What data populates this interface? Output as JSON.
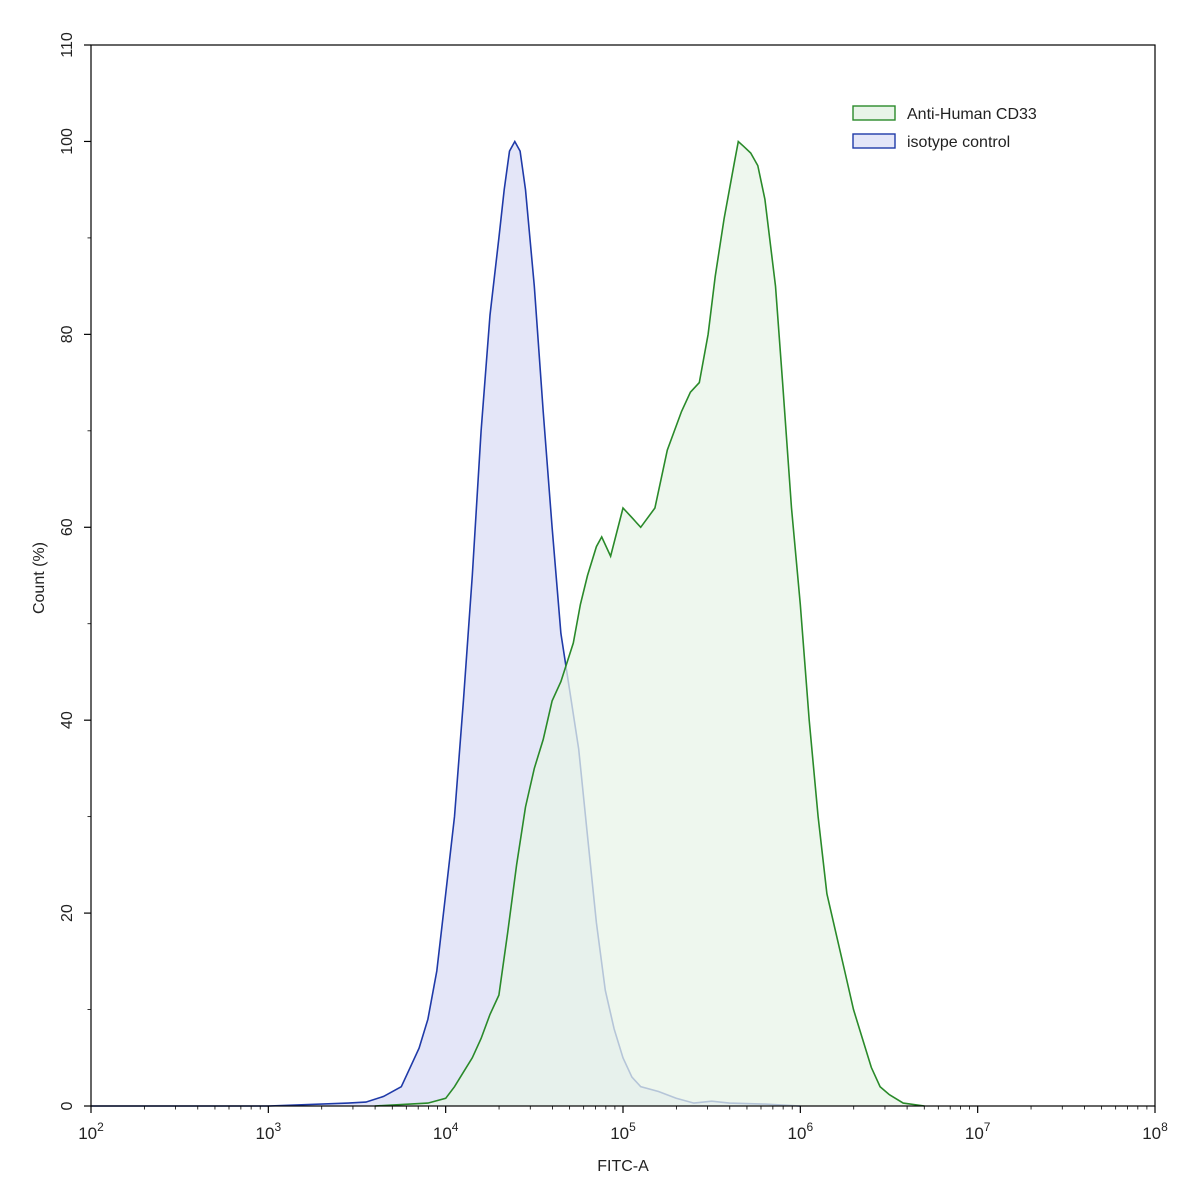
{
  "chart_data": {
    "type": "area",
    "xlabel": "FITC-A",
    "ylabel": "Count  (%)",
    "x_scale": "log10",
    "xlim": [
      100,
      100000000
    ],
    "ylim": [
      0,
      110
    ],
    "x_ticks": [
      {
        "value": 100,
        "base": "10",
        "exp": "2"
      },
      {
        "value": 1000,
        "base": "10",
        "exp": "3"
      },
      {
        "value": 10000,
        "base": "10",
        "exp": "4"
      },
      {
        "value": 100000,
        "base": "10",
        "exp": "5"
      },
      {
        "value": 1000000,
        "base": "10",
        "exp": "6"
      },
      {
        "value": 10000000,
        "base": "10",
        "exp": "7"
      },
      {
        "value": 100000000,
        "base": "10",
        "exp": "8"
      }
    ],
    "y_ticks": [
      "0",
      "20",
      "40",
      "60",
      "80",
      "100",
      "110"
    ],
    "legend_position": "top-right",
    "grid": false,
    "series": [
      {
        "name": "Anti-Human CD33",
        "stroke": "#2a8a2a",
        "fill": "#e8f4e8",
        "points": [
          [
            3.6,
            0
          ],
          [
            3.9,
            0.3
          ],
          [
            4.0,
            0.8
          ],
          [
            4.05,
            2
          ],
          [
            4.1,
            3.5
          ],
          [
            4.15,
            5
          ],
          [
            4.2,
            7
          ],
          [
            4.25,
            9.5
          ],
          [
            4.3,
            11.5
          ],
          [
            4.35,
            18
          ],
          [
            4.4,
            25
          ],
          [
            4.45,
            31
          ],
          [
            4.5,
            35
          ],
          [
            4.55,
            38
          ],
          [
            4.6,
            42
          ],
          [
            4.65,
            44
          ],
          [
            4.72,
            48
          ],
          [
            4.76,
            52
          ],
          [
            4.8,
            55
          ],
          [
            4.85,
            58
          ],
          [
            4.88,
            59
          ],
          [
            4.93,
            57
          ],
          [
            5.0,
            62
          ],
          [
            5.05,
            61
          ],
          [
            5.1,
            60
          ],
          [
            5.18,
            62
          ],
          [
            5.25,
            68
          ],
          [
            5.33,
            72
          ],
          [
            5.38,
            74
          ],
          [
            5.43,
            75
          ],
          [
            5.48,
            80
          ],
          [
            5.52,
            86
          ],
          [
            5.57,
            92
          ],
          [
            5.6,
            95
          ],
          [
            5.63,
            98
          ],
          [
            5.65,
            100
          ],
          [
            5.68,
            99.5
          ],
          [
            5.72,
            98.8
          ],
          [
            5.76,
            97.5
          ],
          [
            5.8,
            94
          ],
          [
            5.86,
            85
          ],
          [
            5.9,
            75
          ],
          [
            5.95,
            62
          ],
          [
            6.0,
            52
          ],
          [
            6.05,
            40
          ],
          [
            6.1,
            30
          ],
          [
            6.15,
            22
          ],
          [
            6.2,
            18
          ],
          [
            6.25,
            14
          ],
          [
            6.3,
            10
          ],
          [
            6.35,
            7
          ],
          [
            6.4,
            4
          ],
          [
            6.45,
            2
          ],
          [
            6.5,
            1.2
          ],
          [
            6.58,
            0.3
          ],
          [
            6.7,
            0
          ]
        ]
      },
      {
        "name": "isotype control",
        "stroke": "#1f3aa8",
        "fill": "#e4e6f8",
        "points": [
          [
            2.0,
            0
          ],
          [
            3.0,
            0
          ],
          [
            3.45,
            0.3
          ],
          [
            3.55,
            0.4
          ],
          [
            3.65,
            1
          ],
          [
            3.75,
            2
          ],
          [
            3.8,
            4
          ],
          [
            3.85,
            6
          ],
          [
            3.9,
            9
          ],
          [
            3.95,
            14
          ],
          [
            4.0,
            22
          ],
          [
            4.05,
            30
          ],
          [
            4.1,
            42
          ],
          [
            4.15,
            55
          ],
          [
            4.2,
            70
          ],
          [
            4.25,
            82
          ],
          [
            4.3,
            90
          ],
          [
            4.33,
            95
          ],
          [
            4.36,
            99
          ],
          [
            4.39,
            100
          ],
          [
            4.42,
            99
          ],
          [
            4.45,
            95
          ],
          [
            4.5,
            85
          ],
          [
            4.55,
            72
          ],
          [
            4.6,
            60
          ],
          [
            4.65,
            49
          ],
          [
            4.7,
            43
          ],
          [
            4.75,
            37
          ],
          [
            4.8,
            28
          ],
          [
            4.85,
            19
          ],
          [
            4.9,
            12
          ],
          [
            4.95,
            8
          ],
          [
            5.0,
            5
          ],
          [
            5.05,
            3
          ],
          [
            5.1,
            2
          ],
          [
            5.2,
            1.5
          ],
          [
            5.3,
            0.8
          ],
          [
            5.4,
            0.3
          ],
          [
            5.5,
            0.5
          ],
          [
            5.6,
            0.3
          ],
          [
            5.8,
            0.2
          ],
          [
            6.0,
            0
          ]
        ]
      }
    ]
  }
}
